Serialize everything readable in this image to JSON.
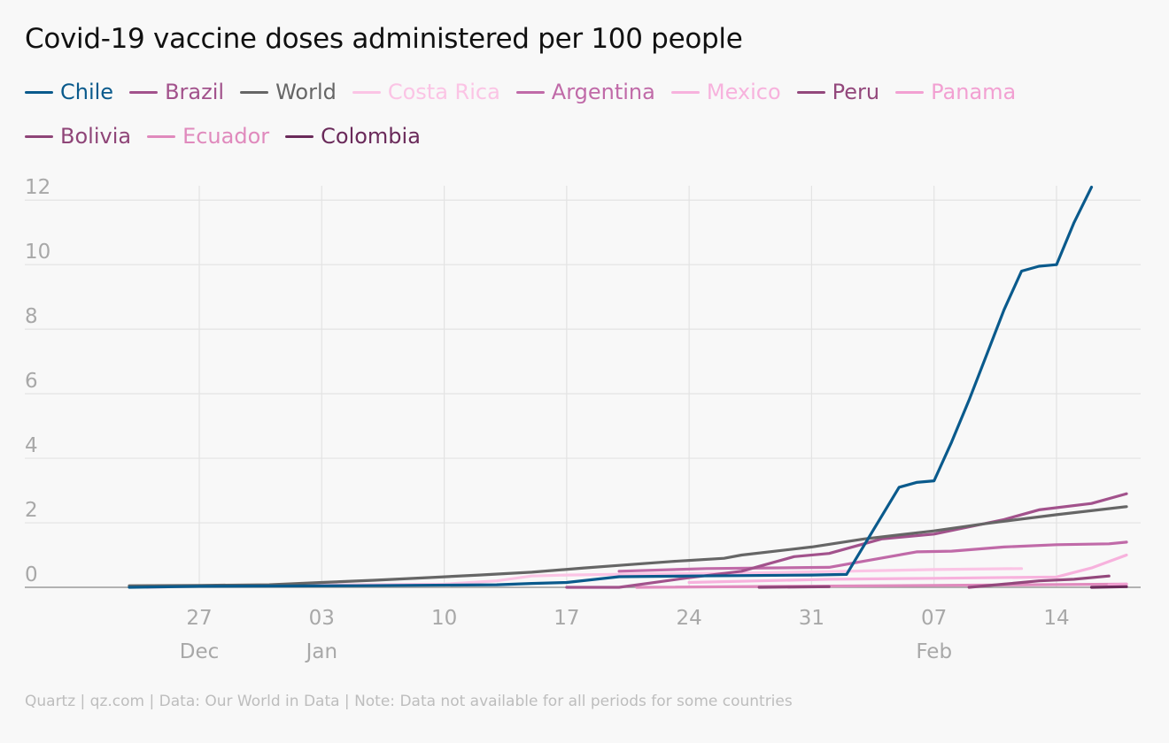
{
  "chart_data": {
    "type": "line",
    "title": "Covid-19 vaccine doses administered per 100 people",
    "source": "Quartz | qz.com | Data: Our World in Data | Note: Data not available for all periods for some countries",
    "y_ticks": [
      "0",
      "2",
      "4",
      "6",
      "8",
      "10",
      "12"
    ],
    "ylim": [
      0,
      12.5
    ],
    "x_range": [
      "2020-12-23",
      "2021-02-18"
    ],
    "x_ticks": [
      {
        "date": "2020-12-27",
        "day": "27",
        "month": "Dec"
      },
      {
        "date": "2021-01-03",
        "day": "03",
        "month": "Jan"
      },
      {
        "date": "2021-01-10",
        "day": "10",
        "month": ""
      },
      {
        "date": "2021-01-17",
        "day": "17",
        "month": ""
      },
      {
        "date": "2021-01-24",
        "day": "24",
        "month": ""
      },
      {
        "date": "2021-01-31",
        "day": "31",
        "month": ""
      },
      {
        "date": "2021-02-07",
        "day": "07",
        "month": "Feb"
      },
      {
        "date": "2021-02-14",
        "day": "14",
        "month": ""
      }
    ],
    "grid": true,
    "legend_position": "top",
    "series": [
      {
        "name": "Ecuador",
        "color": "#e08abd",
        "points": [
          [
            "2021-01-21",
            0.0
          ],
          [
            "2021-02-18",
            0.1
          ]
        ]
      },
      {
        "name": "Costa Rica",
        "color": "#fbc4e5",
        "points": [
          [
            "2020-12-24",
            0.0
          ],
          [
            "2020-12-28",
            0.05
          ],
          [
            "2021-01-05",
            0.08
          ],
          [
            "2021-01-10",
            0.1
          ],
          [
            "2021-01-13",
            0.2
          ],
          [
            "2021-01-15",
            0.35
          ],
          [
            "2021-01-17",
            0.38
          ],
          [
            "2021-01-22",
            0.42
          ],
          [
            "2021-01-28",
            0.45
          ],
          [
            "2021-02-02",
            0.5
          ],
          [
            "2021-02-07",
            0.55
          ],
          [
            "2021-02-12",
            0.58
          ]
        ]
      },
      {
        "name": "Mexico",
        "color": "#f7b2dd",
        "points": [
          [
            "2021-01-24",
            0.15
          ],
          [
            "2021-01-28",
            0.2
          ],
          [
            "2021-02-01",
            0.25
          ],
          [
            "2021-02-07",
            0.28
          ],
          [
            "2021-02-14",
            0.32
          ],
          [
            "2021-02-16",
            0.6
          ],
          [
            "2021-02-18",
            1.0
          ]
        ]
      },
      {
        "name": "Panama",
        "color": "#f2a0d2",
        "points": [
          [
            "2021-02-17",
            0.08
          ],
          [
            "2021-02-18",
            0.1
          ]
        ]
      },
      {
        "name": "Argentina",
        "color": "#c06aa8",
        "points": [
          [
            "2021-01-20",
            0.5
          ],
          [
            "2021-01-25",
            0.58
          ],
          [
            "2021-02-01",
            0.62
          ],
          [
            "2021-02-06",
            1.1
          ],
          [
            "2021-02-08",
            1.12
          ],
          [
            "2021-02-11",
            1.25
          ],
          [
            "2021-02-14",
            1.32
          ],
          [
            "2021-02-17",
            1.35
          ],
          [
            "2021-02-18",
            1.4
          ]
        ]
      },
      {
        "name": "Brazil",
        "color": "#a2528c",
        "points": [
          [
            "2021-01-17",
            0.0
          ],
          [
            "2021-01-20",
            0.0
          ],
          [
            "2021-01-24",
            0.3
          ],
          [
            "2021-01-27",
            0.5
          ],
          [
            "2021-01-30",
            0.95
          ],
          [
            "2021-02-01",
            1.05
          ],
          [
            "2021-02-04",
            1.5
          ],
          [
            "2021-02-07",
            1.65
          ],
          [
            "2021-02-11",
            2.1
          ],
          [
            "2021-02-13",
            2.4
          ],
          [
            "2021-02-16",
            2.6
          ],
          [
            "2021-02-18",
            2.9
          ]
        ]
      },
      {
        "name": "Peru",
        "color": "#93487c",
        "points": [
          [
            "2021-02-09",
            0.0
          ],
          [
            "2021-02-11",
            0.1
          ],
          [
            "2021-02-13",
            0.2
          ],
          [
            "2021-02-15",
            0.25
          ],
          [
            "2021-02-17",
            0.35
          ]
        ]
      },
      {
        "name": "Bolivia",
        "color": "#8f4578",
        "points": [
          [
            "2021-01-28",
            0.0
          ],
          [
            "2021-02-01",
            0.02
          ]
        ]
      },
      {
        "name": "Colombia",
        "color": "#6a2a5a",
        "points": [
          [
            "2021-02-16",
            0.0
          ],
          [
            "2021-02-18",
            0.02
          ]
        ]
      },
      {
        "name": "World",
        "color": "#666666",
        "points": [
          [
            "2020-12-23",
            0.05
          ],
          [
            "2020-12-27",
            0.06
          ],
          [
            "2020-12-31",
            0.08
          ],
          [
            "2021-01-03",
            0.15
          ],
          [
            "2021-01-06",
            0.22
          ],
          [
            "2021-01-09",
            0.3
          ],
          [
            "2021-01-12",
            0.38
          ],
          [
            "2021-01-15",
            0.47
          ],
          [
            "2021-01-18",
            0.6
          ],
          [
            "2021-01-20",
            0.68
          ],
          [
            "2021-01-23",
            0.8
          ],
          [
            "2021-01-26",
            0.9
          ],
          [
            "2021-01-27",
            1.0
          ],
          [
            "2021-01-31",
            1.25
          ],
          [
            "2021-02-03",
            1.5
          ],
          [
            "2021-02-07",
            1.75
          ],
          [
            "2021-02-10",
            1.98
          ],
          [
            "2021-02-14",
            2.25
          ],
          [
            "2021-02-18",
            2.5
          ]
        ]
      },
      {
        "name": "Chile",
        "color": "#0a5a8c",
        "points": [
          [
            "2020-12-23",
            0.0
          ],
          [
            "2020-12-27",
            0.03
          ],
          [
            "2021-01-05",
            0.05
          ],
          [
            "2021-01-13",
            0.08
          ],
          [
            "2021-01-15",
            0.12
          ],
          [
            "2021-01-17",
            0.15
          ],
          [
            "2021-01-20",
            0.33
          ],
          [
            "2021-01-24",
            0.35
          ],
          [
            "2021-01-31",
            0.38
          ],
          [
            "2021-02-02",
            0.4
          ],
          [
            "2021-02-05",
            3.1
          ],
          [
            "2021-02-06",
            3.25
          ],
          [
            "2021-02-07",
            3.3
          ],
          [
            "2021-02-08",
            4.5
          ],
          [
            "2021-02-09",
            5.8
          ],
          [
            "2021-02-10",
            7.2
          ],
          [
            "2021-02-11",
            8.6
          ],
          [
            "2021-02-12",
            9.8
          ],
          [
            "2021-02-13",
            9.95
          ],
          [
            "2021-02-14",
            10.0
          ],
          [
            "2021-02-15",
            11.3
          ],
          [
            "2021-02-16",
            12.4
          ]
        ]
      }
    ],
    "legend": [
      {
        "name": "Chile",
        "color": "#0a5a8c"
      },
      {
        "name": "Brazil",
        "color": "#a2528c"
      },
      {
        "name": "World",
        "color": "#666666"
      },
      {
        "name": "Costa Rica",
        "color": "#fbc4e5"
      },
      {
        "name": "Argentina",
        "color": "#c06aa8"
      },
      {
        "name": "Mexico",
        "color": "#f7b2dd"
      },
      {
        "name": "Peru",
        "color": "#93487c"
      },
      {
        "name": "Panama",
        "color": "#f2a0d2"
      },
      {
        "name": "Bolivia",
        "color": "#8f4578"
      },
      {
        "name": "Ecuador",
        "color": "#e08abd"
      },
      {
        "name": "Colombia",
        "color": "#6a2a5a"
      }
    ]
  }
}
